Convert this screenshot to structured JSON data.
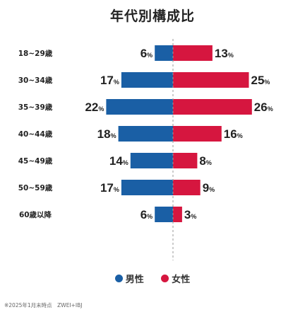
{
  "chart_data": {
    "type": "bar",
    "title": "年代別構成比",
    "categories": [
      "18~29歳",
      "30~34歳",
      "35~39歳",
      "40~44歳",
      "45~49歳",
      "50~59歳",
      "60歳以降"
    ],
    "series": [
      {
        "name": "男性",
        "color": "#1a5fa5",
        "values": [
          6,
          17,
          22,
          18,
          14,
          17,
          6
        ]
      },
      {
        "name": "女性",
        "color": "#d6163f",
        "values": [
          13,
          25,
          26,
          16,
          8,
          9,
          3
        ]
      }
    ],
    "value_suffix": "%",
    "legend_position": "bottom-center",
    "orientation": "horizontal-diverging"
  },
  "legend": {
    "male_label": "男性",
    "female_label": "女性",
    "male_color": "#1a5fa5",
    "female_color": "#d6163f"
  },
  "footnote": "※2025年1月末時点　ZWEI+IBJ"
}
